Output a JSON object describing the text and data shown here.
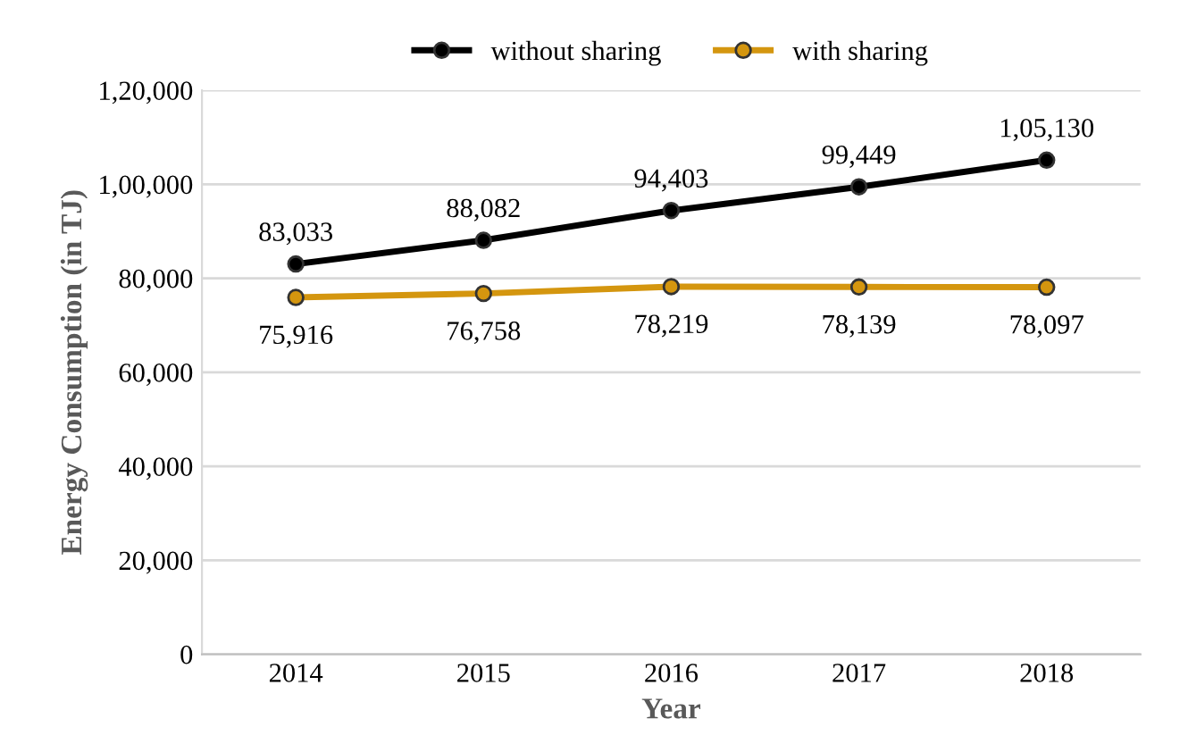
{
  "chart_data": {
    "type": "line",
    "xlabel": "Year",
    "ylabel": "Energy Consumption (in TJ)",
    "categories": [
      "2014",
      "2015",
      "2016",
      "2017",
      "2018"
    ],
    "series": [
      {
        "name": "without sharing",
        "color": "#000000",
        "values": [
          83033,
          88082,
          94403,
          99449,
          105130
        ],
        "value_labels": [
          "83,033",
          "88,082",
          "94,403",
          "99,449",
          "1,05,130"
        ]
      },
      {
        "name": "with sharing",
        "color": "#d4960f",
        "values": [
          75916,
          76758,
          78219,
          78139,
          78097
        ],
        "value_labels": [
          "75,916",
          "76,758",
          "78,219",
          "78,139",
          "78,097"
        ]
      }
    ],
    "ylim": [
      0,
      120000
    ],
    "yticks": [
      0,
      {
        "value": 20000,
        "label": "20,000"
      },
      {
        "value": 40000,
        "label": "40,000"
      },
      {
        "value": 60000,
        "label": "60,000"
      },
      {
        "value": 80000,
        "label": "80,000"
      },
      {
        "value": 100000,
        "label": "1,00,000"
      },
      {
        "value": 120000,
        "label": "1,20,000"
      }
    ],
    "grid": "y",
    "legend": "top",
    "marker": "circle",
    "line_style": "solid"
  }
}
